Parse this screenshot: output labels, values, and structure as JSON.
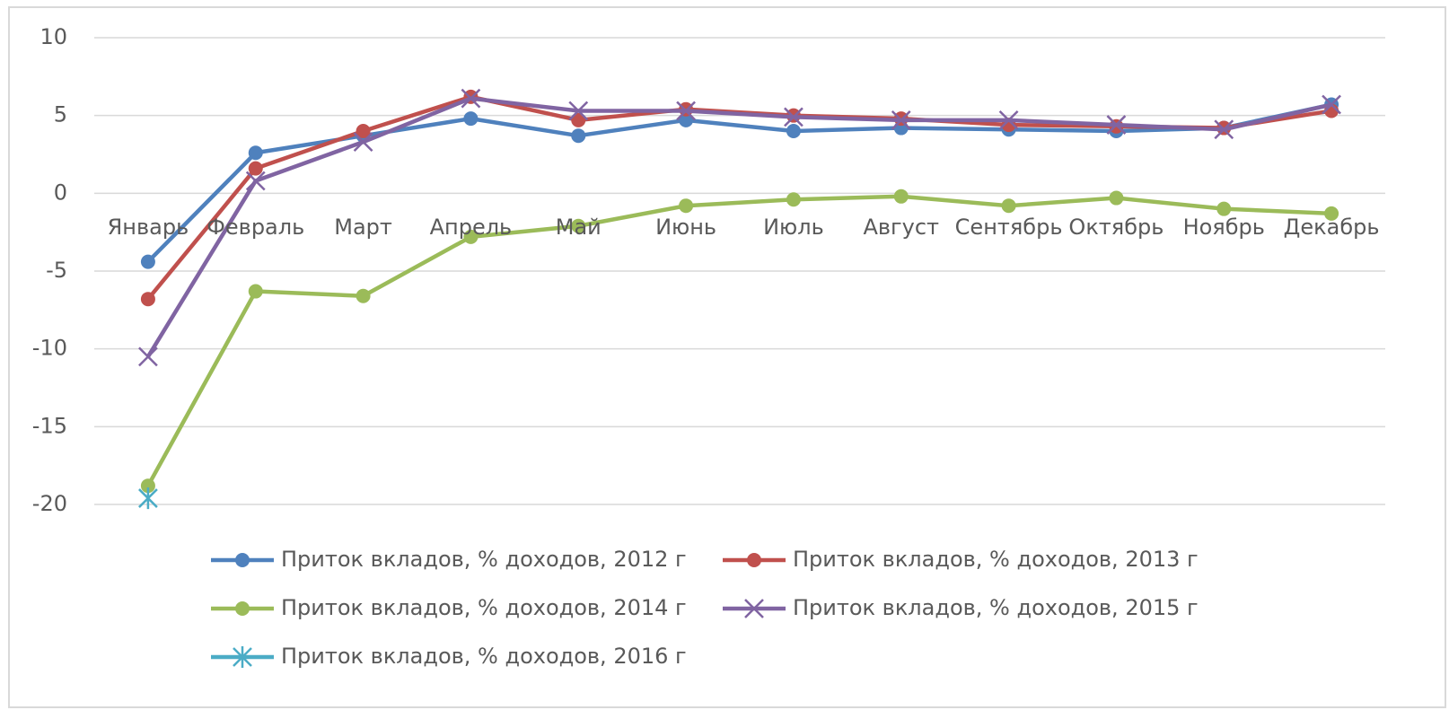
{
  "chart_data": {
    "type": "line",
    "categories": [
      "Январь",
      "Февраль",
      "Март",
      "Апрель",
      "Май",
      "Июнь",
      "Июль",
      "Август",
      "Сентябрь",
      "Октябрь",
      "Ноябрь",
      "Декабрь"
    ],
    "series": [
      {
        "name": "Приток вкладов, % доходов, 2012 г",
        "color": "#4f81bd",
        "marker": "circle",
        "values": [
          -4.4,
          2.6,
          3.7,
          4.8,
          3.7,
          4.7,
          4.0,
          4.2,
          4.1,
          4.0,
          4.2,
          5.7
        ]
      },
      {
        "name": "Приток вкладов, % доходов, 2013 г",
        "color": "#c0504d",
        "marker": "circle",
        "values": [
          -6.8,
          1.6,
          4.0,
          6.2,
          4.7,
          5.4,
          5.0,
          4.8,
          4.4,
          4.3,
          4.2,
          5.3
        ]
      },
      {
        "name": "Приток вкладов, % доходов, 2014 г",
        "color": "#9bbb59",
        "marker": "circle",
        "values": [
          -18.8,
          -6.3,
          -6.6,
          -2.8,
          -2.1,
          -0.8,
          -0.4,
          -0.2,
          -0.8,
          -0.3,
          -1.0,
          -1.3
        ]
      },
      {
        "name": "Приток вкладов, % доходов, 2015 г",
        "color": "#8064a2",
        "marker": "x",
        "values": [
          -10.5,
          0.8,
          3.3,
          6.1,
          5.3,
          5.3,
          4.9,
          4.7,
          4.7,
          4.4,
          4.1,
          5.7
        ]
      },
      {
        "name": "Приток вкладов, % доходов, 2016 г",
        "color": "#4bacc6",
        "marker": "star",
        "values": [
          -19.6,
          null,
          null,
          null,
          null,
          null,
          null,
          null,
          null,
          null,
          null,
          null
        ]
      }
    ],
    "ylim": [
      -20,
      10
    ],
    "yticks": [
      -20,
      -15,
      -10,
      -5,
      0,
      5,
      10
    ],
    "grid": true,
    "legend": "bottom"
  }
}
